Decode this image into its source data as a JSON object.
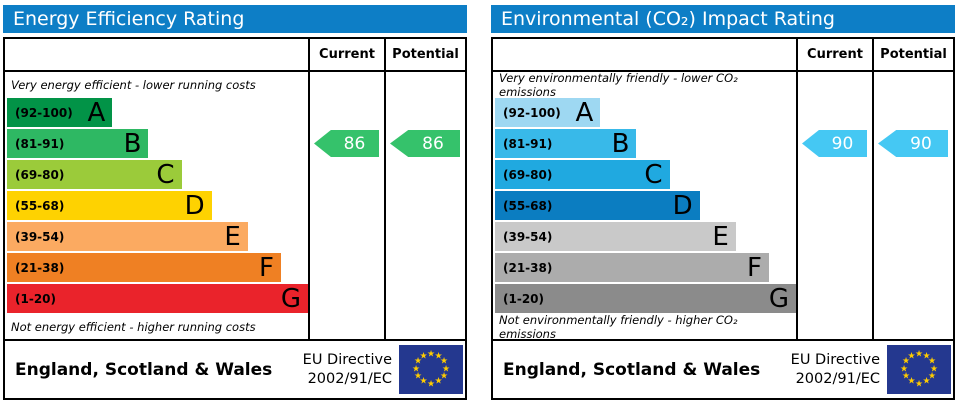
{
  "header_bg": "#0d7ec6",
  "flag_bg": "#24388f",
  "flag_star_color": "#ffcc00",
  "charts": [
    {
      "title": "Energy Efficiency Rating",
      "columns": {
        "current": "Current",
        "potential": "Potential"
      },
      "top_note": "Very energy efficient - lower running costs",
      "bottom_note": "Not energy efficient - higher running costs",
      "bands": [
        {
          "range": "(92-100)",
          "letter": "A",
          "color": "#029347",
          "width_pct": 35
        },
        {
          "range": "(81-91)",
          "letter": "B",
          "color": "#2eb863",
          "width_pct": 47
        },
        {
          "range": "(69-80)",
          "letter": "C",
          "color": "#9bcb3a",
          "width_pct": 58
        },
        {
          "range": "(55-68)",
          "letter": "D",
          "color": "#fed201",
          "width_pct": 68
        },
        {
          "range": "(39-54)",
          "letter": "E",
          "color": "#fbaa61",
          "width_pct": 80
        },
        {
          "range": "(21-38)",
          "letter": "F",
          "color": "#ef8023",
          "width_pct": 91
        },
        {
          "range": "(1-20)",
          "letter": "G",
          "color": "#ea232b",
          "width_pct": 100
        }
      ],
      "current": {
        "value": "86",
        "band_index": 1,
        "color": "#35c26b"
      },
      "potential": {
        "value": "86",
        "band_index": 1,
        "color": "#35c26b"
      },
      "footer": {
        "region": "England, Scotland & Wales",
        "directive_line1": "EU Directive",
        "directive_line2": "2002/91/EC"
      }
    },
    {
      "title": "Environmental (CO₂) Impact Rating",
      "columns": {
        "current": "Current",
        "potential": "Potential"
      },
      "top_note": "Very environmentally friendly - lower CO₂ emissions",
      "bottom_note": "Not environmentally friendly - higher CO₂ emissions",
      "bands": [
        {
          "range": "(92-100)",
          "letter": "A",
          "color": "#9ed8f2",
          "width_pct": 35
        },
        {
          "range": "(81-91)",
          "letter": "B",
          "color": "#38b9e9",
          "width_pct": 47
        },
        {
          "range": "(69-80)",
          "letter": "C",
          "color": "#20a9e0",
          "width_pct": 58
        },
        {
          "range": "(55-68)",
          "letter": "D",
          "color": "#0b7dc1",
          "width_pct": 68
        },
        {
          "range": "(39-54)",
          "letter": "E",
          "color": "#c9c9c9",
          "width_pct": 80
        },
        {
          "range": "(21-38)",
          "letter": "F",
          "color": "#acacac",
          "width_pct": 91
        },
        {
          "range": "(1-20)",
          "letter": "G",
          "color": "#8b8b8b",
          "width_pct": 100
        }
      ],
      "current": {
        "value": "90",
        "band_index": 1,
        "color": "#45c8f3"
      },
      "potential": {
        "value": "90",
        "band_index": 1,
        "color": "#45c8f3"
      },
      "footer": {
        "region": "England, Scotland & Wales",
        "directive_line1": "EU Directive",
        "directive_line2": "2002/91/EC"
      }
    }
  ],
  "chart_data": [
    {
      "type": "bar",
      "title": "Energy Efficiency Rating",
      "categories": [
        "A (92-100)",
        "B (81-91)",
        "C (69-80)",
        "D (55-68)",
        "E (39-54)",
        "F (21-38)",
        "G (1-20)"
      ],
      "series": [
        {
          "name": "Current",
          "values": [
            86
          ]
        },
        {
          "name": "Potential",
          "values": [
            86
          ]
        }
      ],
      "current": 86,
      "potential": 86,
      "current_band": "B",
      "potential_band": "B",
      "xlim": [
        1,
        100
      ],
      "annotations": [
        "Very energy efficient - lower running costs",
        "Not energy efficient - higher running costs"
      ]
    },
    {
      "type": "bar",
      "title": "Environmental (CO₂) Impact Rating",
      "categories": [
        "A (92-100)",
        "B (81-91)",
        "C (69-80)",
        "D (55-68)",
        "E (39-54)",
        "F (21-38)",
        "G (1-20)"
      ],
      "series": [
        {
          "name": "Current",
          "values": [
            90
          ]
        },
        {
          "name": "Potential",
          "values": [
            90
          ]
        }
      ],
      "current": 90,
      "potential": 90,
      "current_band": "B",
      "potential_band": "B",
      "xlim": [
        1,
        100
      ],
      "annotations": [
        "Very environmentally friendly - lower CO₂ emissions",
        "Not environmentally friendly - higher CO₂ emissions"
      ]
    }
  ]
}
